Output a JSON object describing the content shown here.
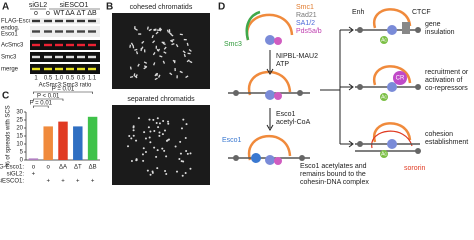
{
  "panel_labels": [
    "A",
    "B",
    "C",
    "D"
  ],
  "panel_a": {
    "group_headers": [
      "siGL2",
      "siESCO1"
    ],
    "lanes": [
      "o",
      "o",
      "WT",
      "ΔA",
      "ΔT",
      "ΔB"
    ],
    "row_labels": [
      "FLAG-Esco1",
      "endog.",
      "Esco1",
      "AcSmc3",
      "Smc3",
      "merge"
    ],
    "ratios": [
      "1",
      "0.5",
      "1.0",
      "0.5",
      "0.5",
      "1.1"
    ],
    "ratio_label": "AcSmc3:Smc3 ratio"
  },
  "panel_b": {
    "top_label": "cohesed chromatids",
    "bottom_label": "separated chromatids"
  },
  "chart_data": {
    "type": "bar",
    "ylabel": "% of spreads with SCS",
    "categories": [
      "o",
      "o",
      "ΔA",
      "ΔT",
      "ΔB"
    ],
    "row_label": "FLAG-Esco1:",
    "sigl2_label": "siGL2:",
    "sigl2": [
      "+",
      null,
      null,
      null,
      null
    ],
    "siesco1_label": "siESCO1:",
    "siesco1": [
      null,
      "+",
      "+",
      "+",
      "+"
    ],
    "values": [
      1,
      21,
      24,
      21,
      27
    ],
    "colors": [
      "#b07fc0",
      "#f08a3c",
      "#e03a22",
      "#2f6fc2",
      "#3fc24a"
    ],
    "ylim": [
      0,
      30
    ],
    "yticks": [
      0,
      5,
      10,
      15,
      20,
      25,
      30
    ],
    "annotations": [
      "P = 0.01",
      "P < 0.01",
      "P = 0.01"
    ]
  },
  "panel_d": {
    "subunits": [
      "Smc1",
      "Rad21",
      "SA1/2",
      "Pds5a/b",
      "Smc3"
    ],
    "loader": [
      "NIPBL-MAU2",
      "ATP"
    ],
    "acetylation": [
      "Esco1",
      "acetyl-CoA"
    ],
    "esco1": "Esco1",
    "ac": "Ac",
    "caption": [
      "Esco1 acetylates and",
      "remains bound to the",
      "cohesin-DNA complex"
    ],
    "enh": "Enh",
    "ctcf": "CTCF",
    "cr": "CR",
    "sororin": "sororin",
    "outcomes": [
      [
        "gene",
        "insulation"
      ],
      [
        "recruitment or",
        "activation of",
        "co-repressors"
      ],
      [
        "cohesion",
        "establishment"
      ]
    ]
  }
}
